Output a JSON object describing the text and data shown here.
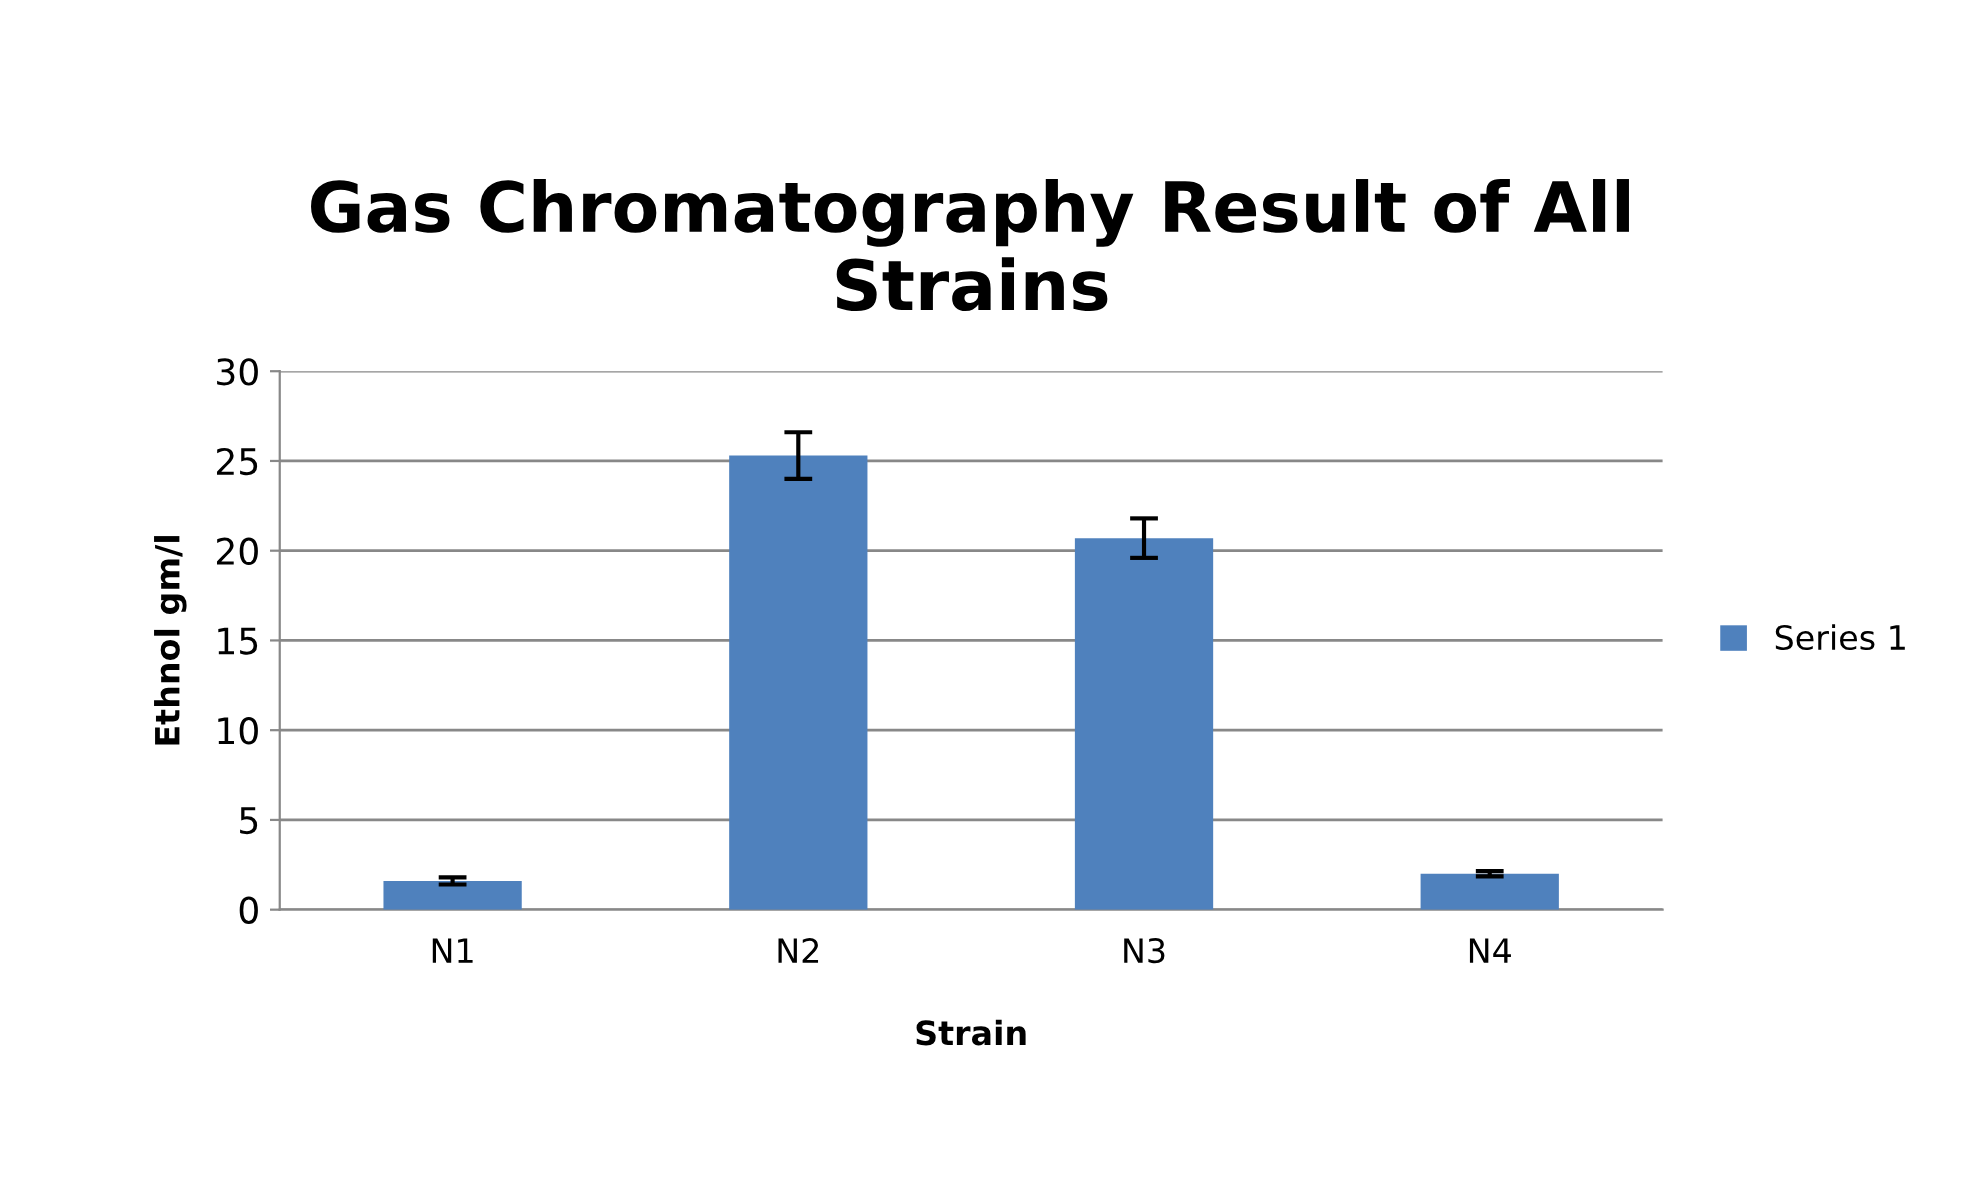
{
  "chart_data": {
    "type": "bar",
    "title": "Gas Chromatography Result of All\nStrains",
    "xlabel": "Strain",
    "ylabel": "Ethnol gm/l",
    "categories": [
      "N1",
      "N2",
      "N3",
      "N4"
    ],
    "series": [
      {
        "name": "Series 1",
        "color": "#4f81bd",
        "values": [
          1.6,
          25.3,
          20.7,
          2.0
        ],
        "errors": [
          0.2,
          1.3,
          1.1,
          0.15
        ]
      }
    ],
    "ylim": [
      0,
      30
    ],
    "yticks": [
      0,
      5,
      10,
      15,
      20,
      25,
      30
    ],
    "grid": "y",
    "legend": "right"
  }
}
